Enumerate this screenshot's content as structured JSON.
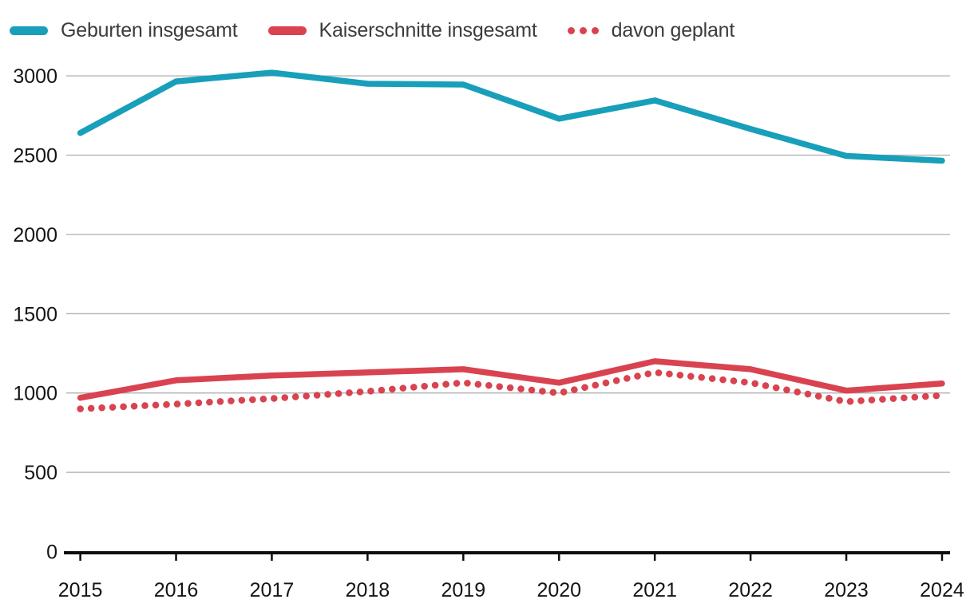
{
  "chart_data": {
    "type": "line",
    "x": [
      2015,
      2016,
      2017,
      2018,
      2019,
      2020,
      2021,
      2022,
      2023,
      2024
    ],
    "series": [
      {
        "name": "Geburten insgesamt",
        "color": "#189fba",
        "style": "solid",
        "values": [
          2640,
          2965,
          3020,
          2950,
          2945,
          2730,
          2845,
          2665,
          2495,
          2465
        ]
      },
      {
        "name": "Kaiserschnitte insgesamt",
        "color": "#d94350",
        "style": "solid",
        "values": [
          970,
          1080,
          1110,
          1130,
          1150,
          1065,
          1200,
          1150,
          1015,
          1060
        ]
      },
      {
        "name": "davon geplant",
        "color": "#d94350",
        "style": "dotted",
        "values": [
          900,
          930,
          965,
          1010,
          1065,
          1000,
          1130,
          1065,
          945,
          985
        ]
      }
    ],
    "title": "",
    "xlabel": "",
    "ylabel": "",
    "ylim": [
      0,
      3000
    ],
    "yticks": [
      0,
      500,
      1000,
      1500,
      2000,
      2500,
      3000
    ],
    "grid": true,
    "legend_position": "top-left"
  },
  "colors": {
    "teal": "#189fba",
    "red": "#d94350",
    "gridline": "#aeaeae",
    "axis": "#0d0d0d",
    "tick_text": "#141414",
    "legend_text": "#3c3c3c"
  }
}
